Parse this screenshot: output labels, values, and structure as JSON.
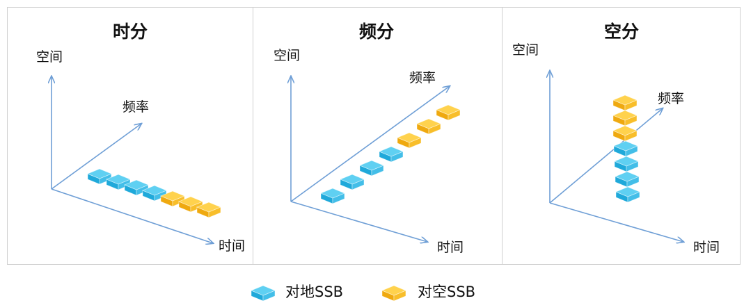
{
  "colors": {
    "ground_ssb": {
      "top": "#5fd0f2",
      "front": "#1fa9da",
      "side": "#43bee8"
    },
    "air_ssb": {
      "top": "#ffd24d",
      "front": "#efa90f",
      "side": "#f8be2a"
    },
    "axis": "#6f9fd6",
    "panel_border": "#cfcfcf",
    "panel_fill": "#ffffff"
  },
  "panels": [
    {
      "title": "时分",
      "axes": {
        "space": "空间",
        "frequency": "频率",
        "time": "时间"
      },
      "blocks": [
        "ground",
        "ground",
        "ground",
        "ground",
        "air",
        "air",
        "air"
      ]
    },
    {
      "title": "频分",
      "axes": {
        "space": "空间",
        "frequency": "频率",
        "time": "时间"
      },
      "blocks": [
        "ground",
        "ground",
        "ground",
        "ground",
        "air",
        "air",
        "air"
      ]
    },
    {
      "title": "空分",
      "axes": {
        "space": "空间",
        "frequency": "频率",
        "time": "时间"
      },
      "blocks": [
        "air",
        "air",
        "air",
        "ground",
        "ground",
        "ground",
        "ground"
      ]
    }
  ],
  "legend": {
    "ground_label": "对地SSB",
    "air_label": "对空SSB"
  }
}
